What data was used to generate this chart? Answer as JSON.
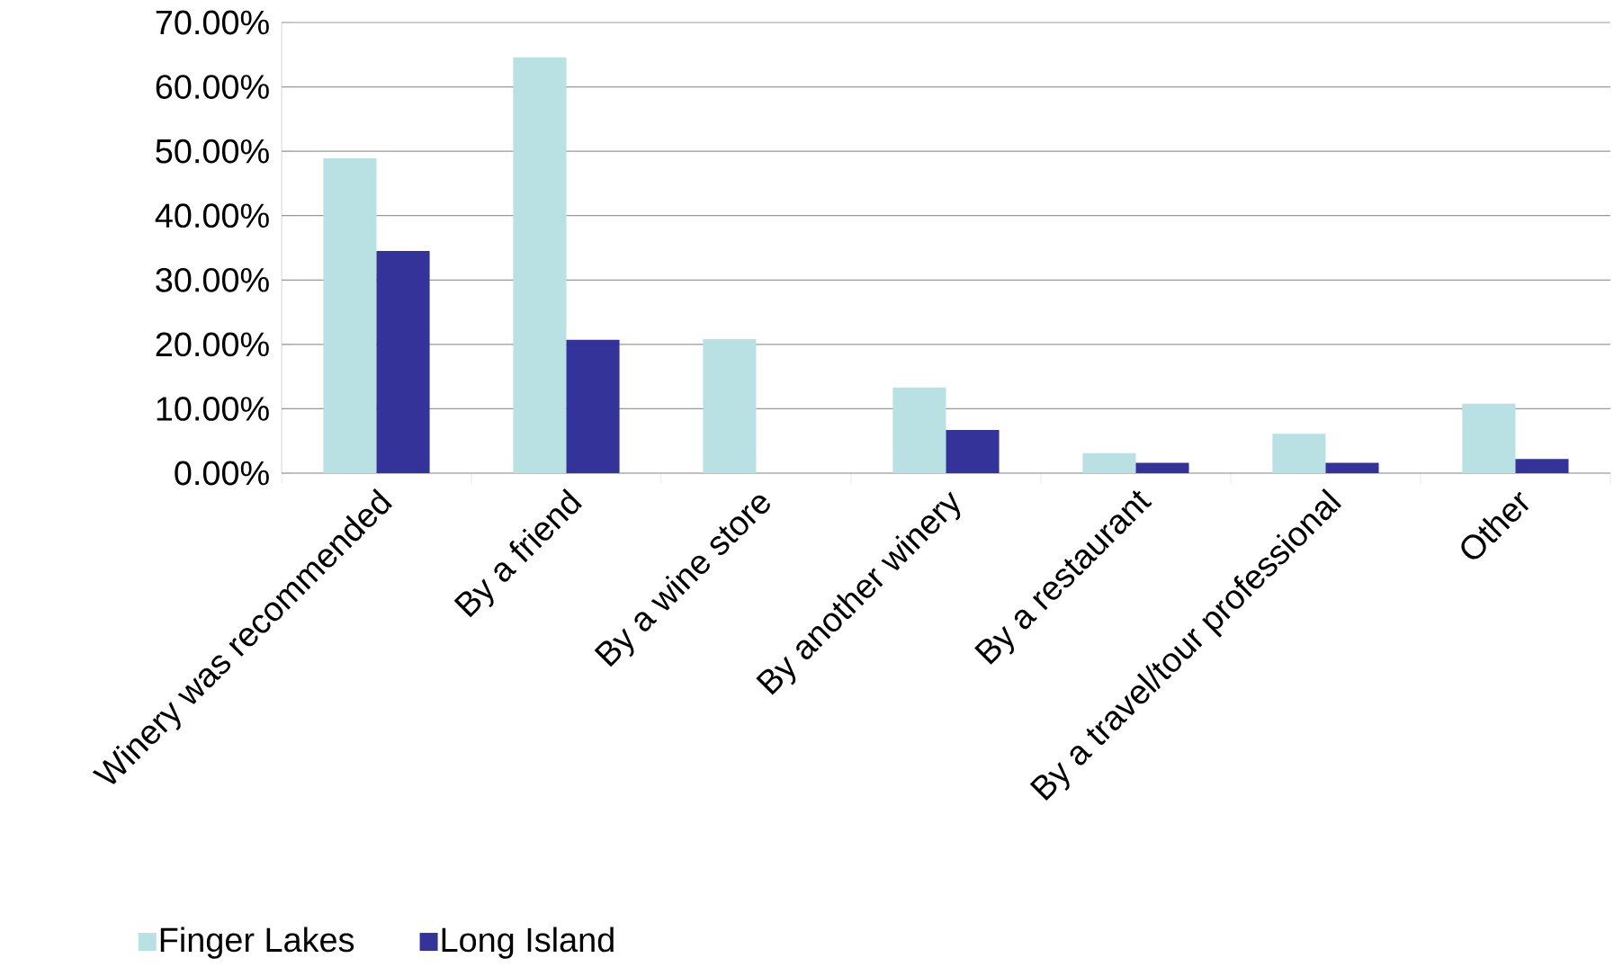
{
  "chart_data": {
    "type": "bar",
    "categories": [
      "Winery was recommended",
      "By a friend",
      "By a wine store",
      "By another winery",
      "By a restaurant",
      "By a travel/tour professional",
      "Other"
    ],
    "series": [
      {
        "name": "Finger Lakes",
        "color": "#b9e0e3",
        "values": [
          48.9,
          64.6,
          20.8,
          13.3,
          3.1,
          6.1,
          10.8
        ]
      },
      {
        "name": "Long Island",
        "color": "#333399",
        "values": [
          34.5,
          20.7,
          0,
          6.7,
          1.6,
          1.6,
          2.2
        ]
      }
    ],
    "ylim": [
      0,
      70
    ],
    "yticks": [
      {
        "value": 0,
        "label": "0.00%"
      },
      {
        "value": 10,
        "label": "10.00%"
      },
      {
        "value": 20,
        "label": "20.00%"
      },
      {
        "value": 30,
        "label": "30.00%"
      },
      {
        "value": 40,
        "label": "40.00%"
      },
      {
        "value": 50,
        "label": "50.00%"
      },
      {
        "value": 60,
        "label": "60.00%"
      },
      {
        "value": 70,
        "label": "70.00%"
      }
    ],
    "grid": "y",
    "legend": "bottom left"
  }
}
